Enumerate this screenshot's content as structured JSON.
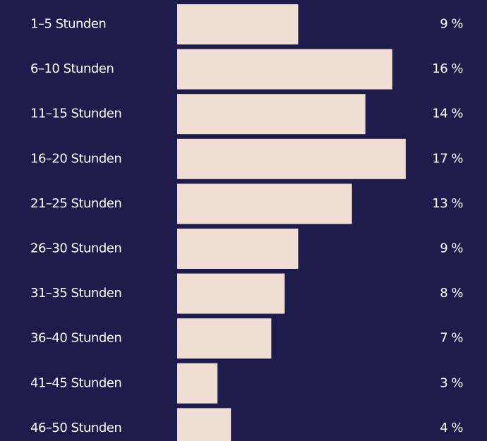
{
  "chart_data": {
    "type": "barh",
    "categories": [
      "1–5 Stunden",
      "6–10 Stunden",
      "11–15 Stunden",
      "16–20 Stunden",
      "21–25 Stunden",
      "26–30 Stunden",
      "31–35 Stunden",
      "36–40 Stunden",
      "41–45 Stunden",
      "46–50 Stunden"
    ],
    "values": [
      9,
      16,
      14,
      17,
      13,
      9,
      8,
      7,
      3,
      4
    ],
    "value_labels": [
      "9 %",
      "16 %",
      "14 %",
      "17 %",
      "13 %",
      "9 %",
      "8 %",
      "7 %",
      "3 %",
      "4 %"
    ],
    "color": "#f0ddd3"
  }
}
